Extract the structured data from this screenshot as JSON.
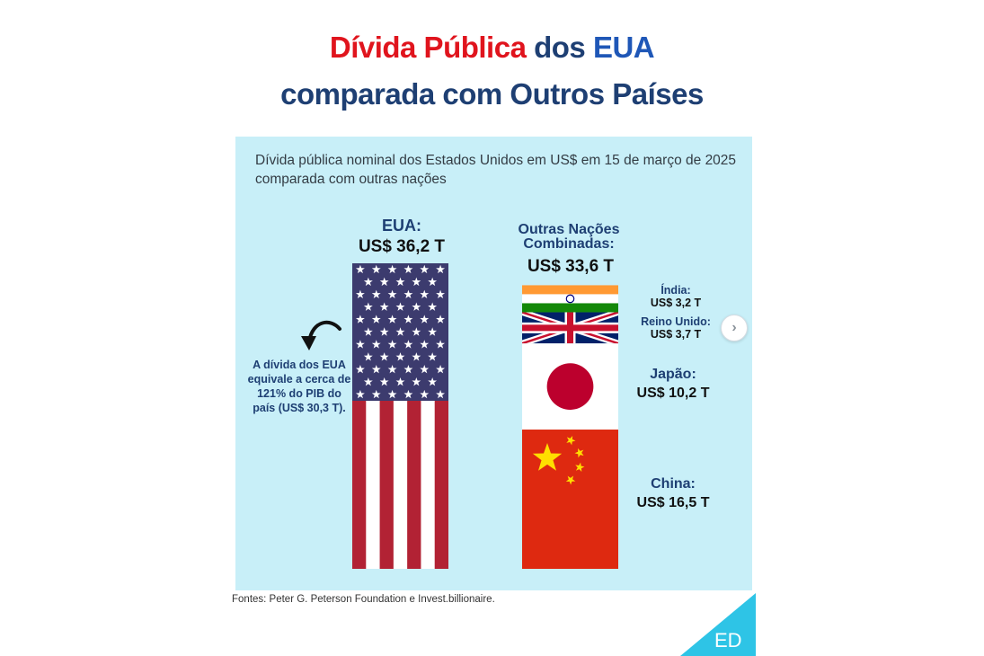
{
  "title": {
    "line1_part1": "Dívida Pública",
    "line1_part2": " dos ",
    "line1_part3": "EUA",
    "line2": "comparada com Outros Países"
  },
  "subtitle": "Dívida pública nominal dos Estados Unidos em US$ em 15 de março de 2025 comparada com outras nações",
  "note": "A dívida dos EUA equivale a cerca de 121% do PIB do país (US$ 30,3 T).",
  "sources": "Fontes: Peter G. Peterson Foundation e Invest.billionaire.",
  "logo": "ED",
  "colors": {
    "title_red": "#e0141d",
    "title_blue": "#1f57b7",
    "title_navy": "#1e3f73",
    "panel_bg": "#c8eff8",
    "us_blue": "#3c3b6e",
    "us_red": "#b22234",
    "china_red": "#de2910",
    "china_yellow": "#ffde00",
    "japan_red": "#bc002d",
    "india_saffron": "#ff9933",
    "india_green": "#138808",
    "uk_blue": "#012169",
    "uk_red": "#c8102e",
    "logo_teal": "#2ec4e6"
  },
  "icons": {
    "arrow": "curved-arrow-icon",
    "next": "chevron-right-icon"
  },
  "chart_data": {
    "type": "stacked-bar",
    "title": "Dívida Pública dos EUA comparada com Outros Países",
    "subtitle": "Dívida pública nominal dos Estados Unidos em US$ em 15 de março de 2025 comparada com outras nações",
    "unit": "US$ T",
    "bars": [
      {
        "name": "EUA",
        "header": "EUA:",
        "total": 36.2,
        "total_label": "US$ 36,2 T",
        "segments": [
          {
            "name": "EUA",
            "value": 36.2,
            "flag": "us-flag"
          }
        ]
      },
      {
        "name": "Outras Nações Combinadas",
        "header": "Outras Nações Combinadas:",
        "total": 33.6,
        "total_label": "US$ 33,6 T",
        "segments": [
          {
            "name": "Índia",
            "label": "Índia:",
            "value": 3.2,
            "value_label": "US$ 3,2 T",
            "flag": "india-flag"
          },
          {
            "name": "Reino Unido",
            "label": "Reino Unido:",
            "value": 3.7,
            "value_label": "US$ 3,7 T",
            "flag": "uk-flag"
          },
          {
            "name": "Japão",
            "label": "Japão:",
            "value": 10.2,
            "value_label": "US$ 10,2 T",
            "flag": "japan-flag"
          },
          {
            "name": "China",
            "label": "China:",
            "value": 16.5,
            "value_label": "US$ 16,5 T",
            "flag": "china-flag"
          }
        ]
      }
    ]
  }
}
